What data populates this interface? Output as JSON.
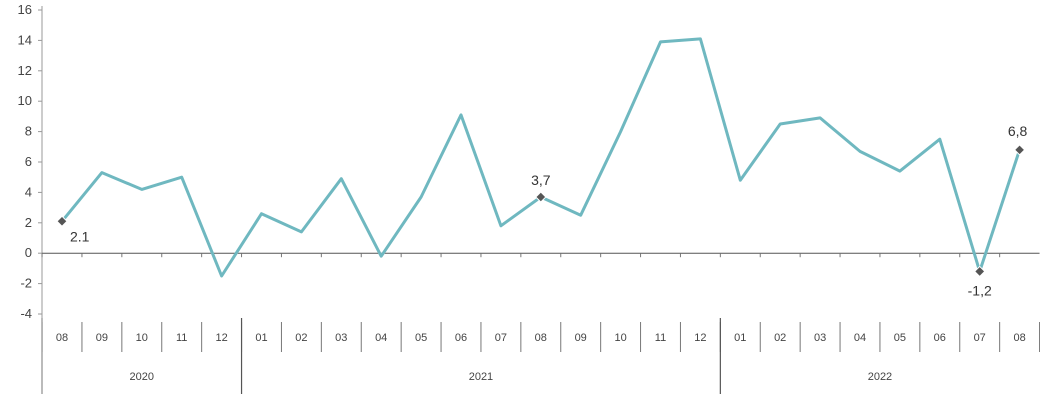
{
  "chart_data": {
    "type": "line",
    "title": "",
    "xlabel": "",
    "ylabel": "",
    "ylim": [
      -4,
      16
    ],
    "yticks": [
      -4,
      -2,
      0,
      2,
      4,
      6,
      8,
      10,
      12,
      14,
      16
    ],
    "ytick_labels": [
      "-4",
      "-2",
      "0",
      "2",
      "4",
      "6",
      "8",
      "10",
      "12",
      "14",
      "16"
    ],
    "grid": false,
    "legend": "none",
    "line_color": "#6fb8c0",
    "marker_color": "#555555",
    "categories": [
      "08",
      "09",
      "10",
      "11",
      "12",
      "01",
      "02",
      "03",
      "04",
      "05",
      "06",
      "07",
      "08",
      "09",
      "10",
      "11",
      "12",
      "01",
      "02",
      "03",
      "04",
      "05",
      "06",
      "07",
      "08"
    ],
    "years": [
      {
        "label": "2020",
        "start": 0,
        "end": 4
      },
      {
        "label": "2021",
        "start": 5,
        "end": 16
      },
      {
        "label": "2022",
        "start": 17,
        "end": 24
      }
    ],
    "series": [
      {
        "values": [
          2.1,
          5.3,
          4.2,
          5.0,
          -1.5,
          2.6,
          1.4,
          4.9,
          -0.2,
          3.7,
          9.1,
          1.8,
          3.7,
          2.5,
          8.0,
          13.9,
          14.1,
          4.8,
          8.5,
          8.9,
          6.7,
          5.4,
          7.5,
          -1.2,
          6.8
        ]
      }
    ],
    "annotations": [
      {
        "index": 0,
        "text": "2.1",
        "marked": true
      },
      {
        "index": 12,
        "text": "3,7",
        "marked": true
      },
      {
        "index": 23,
        "text": "-1,2",
        "marked": true
      },
      {
        "index": 24,
        "text": "6,8",
        "marked": true
      }
    ]
  }
}
